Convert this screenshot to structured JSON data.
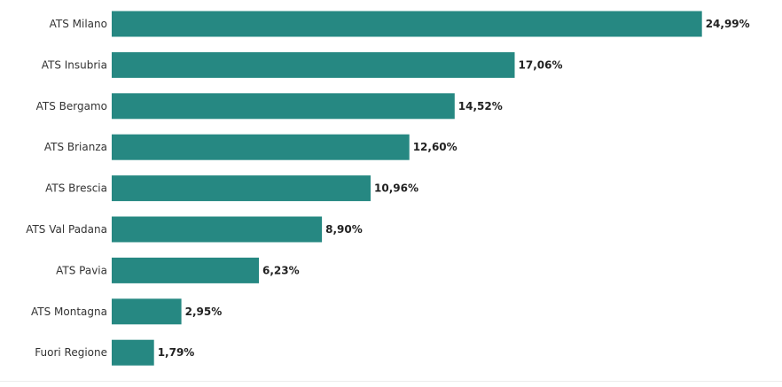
{
  "chart_data": {
    "type": "bar",
    "orientation": "horizontal",
    "title": "",
    "xlabel": "",
    "ylabel": "",
    "categories": [
      "ATS Milano",
      "ATS Insubria",
      "ATS Bergamo",
      "ATS Brianza",
      "ATS Brescia",
      "ATS Val Padana",
      "ATS Pavia",
      "ATS Montagna",
      "Fuori Regione"
    ],
    "values": [
      24.99,
      17.06,
      14.52,
      12.6,
      10.96,
      8.9,
      6.23,
      2.95,
      1.79
    ],
    "value_labels": [
      "24,99%",
      "17,06%",
      "14,52%",
      "12,60%",
      "10,96%",
      "8,90%",
      "6,23%",
      "2,95%",
      "1,79%"
    ],
    "xlim": [
      0,
      25
    ],
    "grid": false,
    "legend": "none",
    "bar_color": "#268882"
  }
}
